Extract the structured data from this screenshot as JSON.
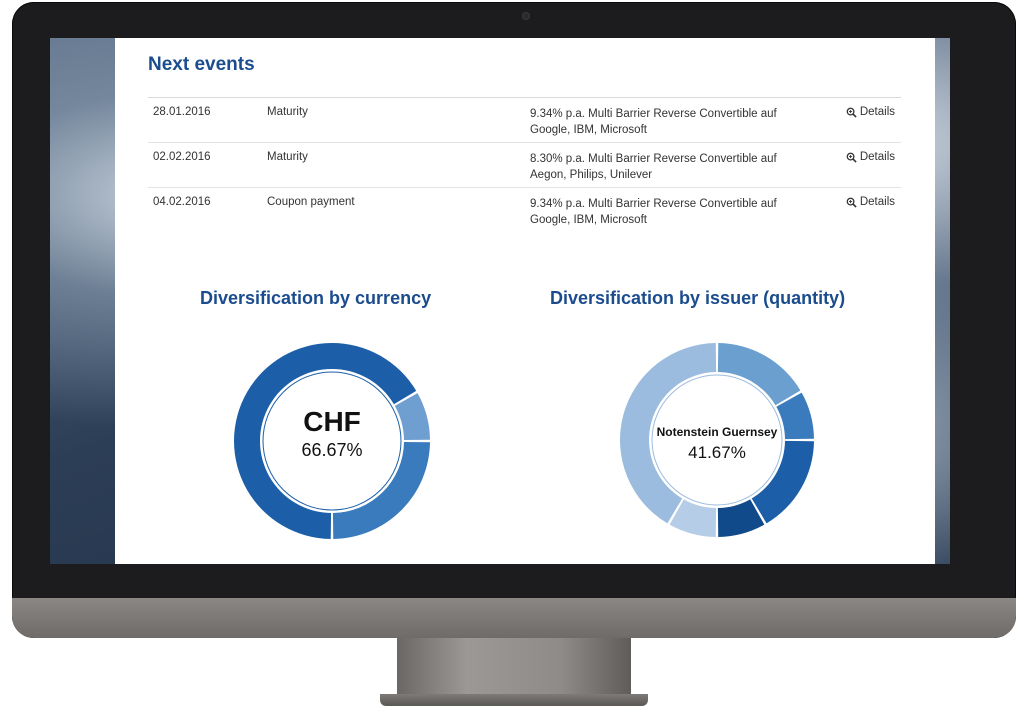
{
  "events": {
    "title": "Next events",
    "details_label": "Details",
    "rows": [
      {
        "date": "28.01.2016",
        "type": "Maturity",
        "description": "9.34% p.a. Multi Barrier Reverse Convertible auf Google, IBM, Microsoft"
      },
      {
        "date": "02.02.2016",
        "type": "Maturity",
        "description": "8.30% p.a. Multi Barrier Reverse Convertible auf Aegon, Philips, Unilever"
      },
      {
        "date": "04.02.2016",
        "type": "Coupon payment",
        "description": "9.34% p.a. Multi Barrier Reverse Convertible auf Google, IBM, Microsoft"
      }
    ]
  },
  "currency_chart": {
    "title": "Diversification by currency",
    "center_label": "CHF",
    "center_value": "66.67%"
  },
  "issuer_chart": {
    "title": "Diversification by issuer (quantity)",
    "center_label": "Notenstein Guernsey",
    "center_value": "41.67%"
  },
  "chart_data": [
    {
      "type": "pie",
      "donut": true,
      "title": "Diversification by currency",
      "values": [
        66.67,
        8.33,
        25.0
      ],
      "colors": [
        "#1c5fa8",
        "#6f9fd0",
        "#3a7bbd"
      ]
    },
    {
      "type": "pie",
      "donut": true,
      "title": "Diversification by issuer (quantity)",
      "values": [
        41.67,
        16.67,
        8.33,
        16.67,
        8.33,
        8.33
      ],
      "colors": [
        "#9bbcde",
        "#6a9fcf",
        "#3a7bbd",
        "#1c5fa8",
        "#114a8a",
        "#b5cde6"
      ]
    }
  ]
}
